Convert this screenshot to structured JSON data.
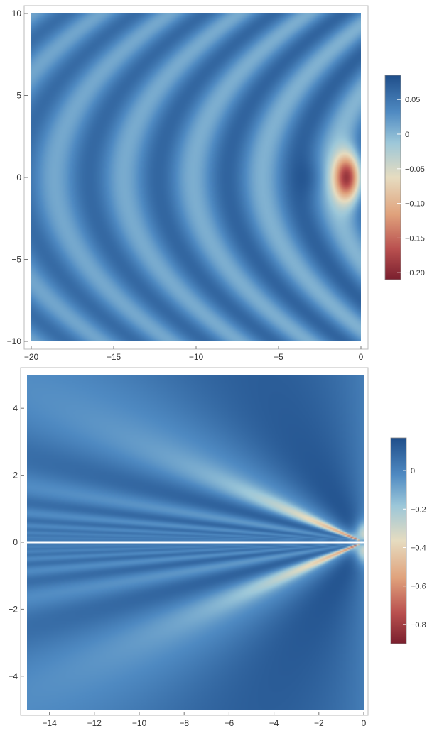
{
  "chart_data": [
    {
      "type": "heatmap",
      "title": "",
      "xlabel": "",
      "ylabel": "",
      "xlim": [
        -20,
        0
      ],
      "ylim": [
        -10,
        10
      ],
      "x_ticks": [
        -20,
        -15,
        -10,
        -5,
        0
      ],
      "y_ticks": [
        -10,
        -5,
        0,
        5,
        10
      ],
      "x_tick_labels": [
        "−20",
        "−15",
        "−10",
        "−5",
        "0"
      ],
      "y_tick_labels": [
        "−10",
        "−5",
        "0",
        "5",
        "10"
      ],
      "grid": false,
      "legend": "right",
      "colorbar": {
        "range": [
          -0.21,
          0.085
        ],
        "ticks": [
          0.05,
          0,
          -0.05,
          -0.1,
          -0.15,
          -0.2
        ],
        "tick_labels": [
          "0.05",
          "0",
          "−0.05",
          "−0.10",
          "−0.15",
          "−0.20"
        ]
      },
      "colors": {
        "min": "#7a1f2e",
        "mid": "#e6dcc0",
        "max": "#1f4e8a"
      },
      "pattern": "curved wave fronts opening to the left, dark red minimum near (-0.8, 0)"
    },
    {
      "type": "heatmap",
      "title": "",
      "xlabel": "",
      "ylabel": "",
      "xlim": [
        -15,
        0
      ],
      "ylim": [
        -5,
        5
      ],
      "x_ticks": [
        -14,
        -12,
        -10,
        -8,
        -6,
        -4,
        -2,
        0
      ],
      "y_ticks": [
        -4,
        -2,
        0,
        2,
        4
      ],
      "x_tick_labels": [
        "−14",
        "−12",
        "−10",
        "−8",
        "−6",
        "−4",
        "−2",
        "0"
      ],
      "y_tick_labels": [
        "−4",
        "−2",
        "0",
        "2",
        "4"
      ],
      "grid": false,
      "legend": "right",
      "colorbar": {
        "range": [
          -0.9,
          0.17
        ],
        "ticks": [
          0,
          -0.2,
          -0.4,
          -0.6,
          -0.8
        ],
        "tick_labels": [
          "0",
          "−0.2",
          "−0.4",
          "−0.6",
          "−0.8"
        ]
      },
      "colors": {
        "min": "#7a1f2e",
        "mid": "#e6dcc0",
        "max": "#1f4e8a"
      },
      "pattern": "fan of stripes converging toward the origin, symmetric about y = 0 with a white cut along y = 0"
    }
  ]
}
